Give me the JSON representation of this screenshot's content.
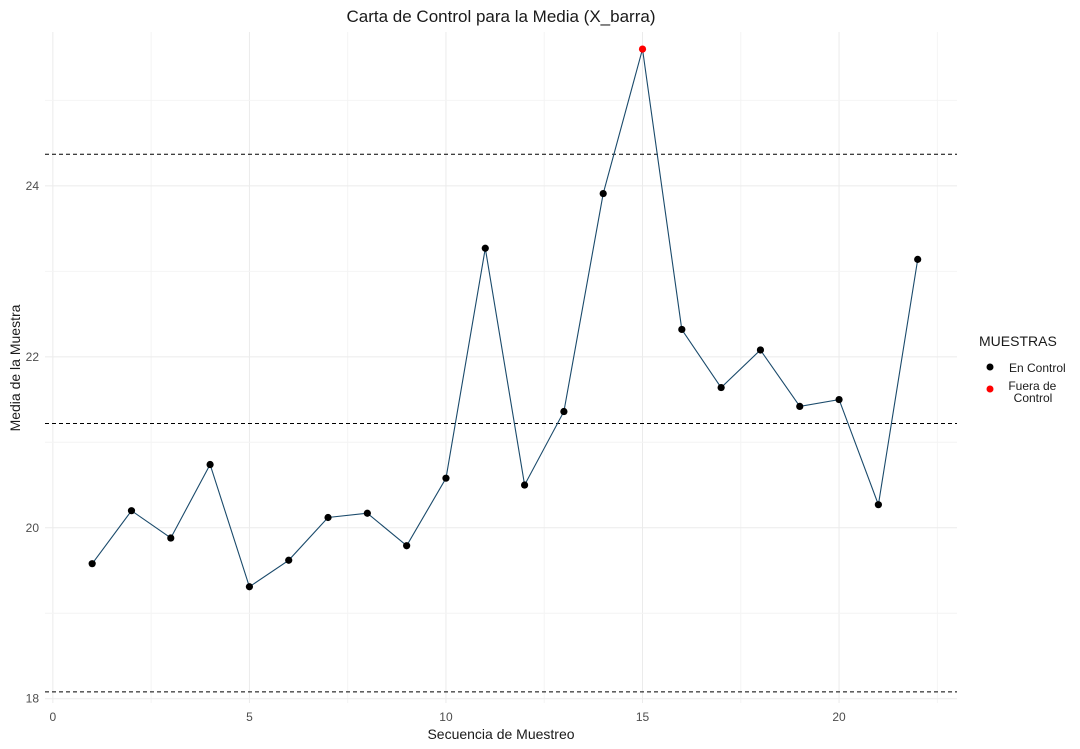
{
  "chart_data": {
    "type": "line",
    "title": "Carta de Control para la Media (X_barra)",
    "xlabel": "Secuencia de Muestreo",
    "ylabel": "Media de la Muestra",
    "xlim": [
      -0.2,
      23.0
    ],
    "ylim": [
      17.95,
      25.8
    ],
    "x_ticks": [
      0,
      5,
      10,
      15,
      20
    ],
    "y_ticks": [
      18,
      20,
      22,
      24
    ],
    "grid": true,
    "series": [
      {
        "x": [
          1,
          2,
          3,
          4,
          5,
          6,
          7,
          8,
          9,
          10,
          11,
          12,
          13,
          14,
          15,
          16,
          17,
          18,
          19,
          20,
          21,
          22
        ],
        "values": [
          19.58,
          20.2,
          19.88,
          20.74,
          19.31,
          19.62,
          20.12,
          20.17,
          19.79,
          20.58,
          23.27,
          20.5,
          21.36,
          23.91,
          25.6,
          22.32,
          21.64,
          22.08,
          21.42,
          21.5,
          20.27,
          23.14
        ],
        "status": [
          "En Control",
          "En Control",
          "En Control",
          "En Control",
          "En Control",
          "En Control",
          "En Control",
          "En Control",
          "En Control",
          "En Control",
          "En Control",
          "En Control",
          "En Control",
          "En Control",
          "Fuera de Control",
          "En Control",
          "En Control",
          "En Control",
          "En Control",
          "En Control",
          "En Control",
          "En Control"
        ]
      }
    ],
    "control_lines": [
      24.37,
      21.22,
      18.08
    ],
    "line_color": "#1a4a6b",
    "legend": {
      "title": "MUESTRAS",
      "placement": "right",
      "entries": [
        {
          "label": "En Control",
          "color": "#000000"
        },
        {
          "label": "Fuera de Control",
          "color": "#ff0000"
        }
      ]
    }
  }
}
